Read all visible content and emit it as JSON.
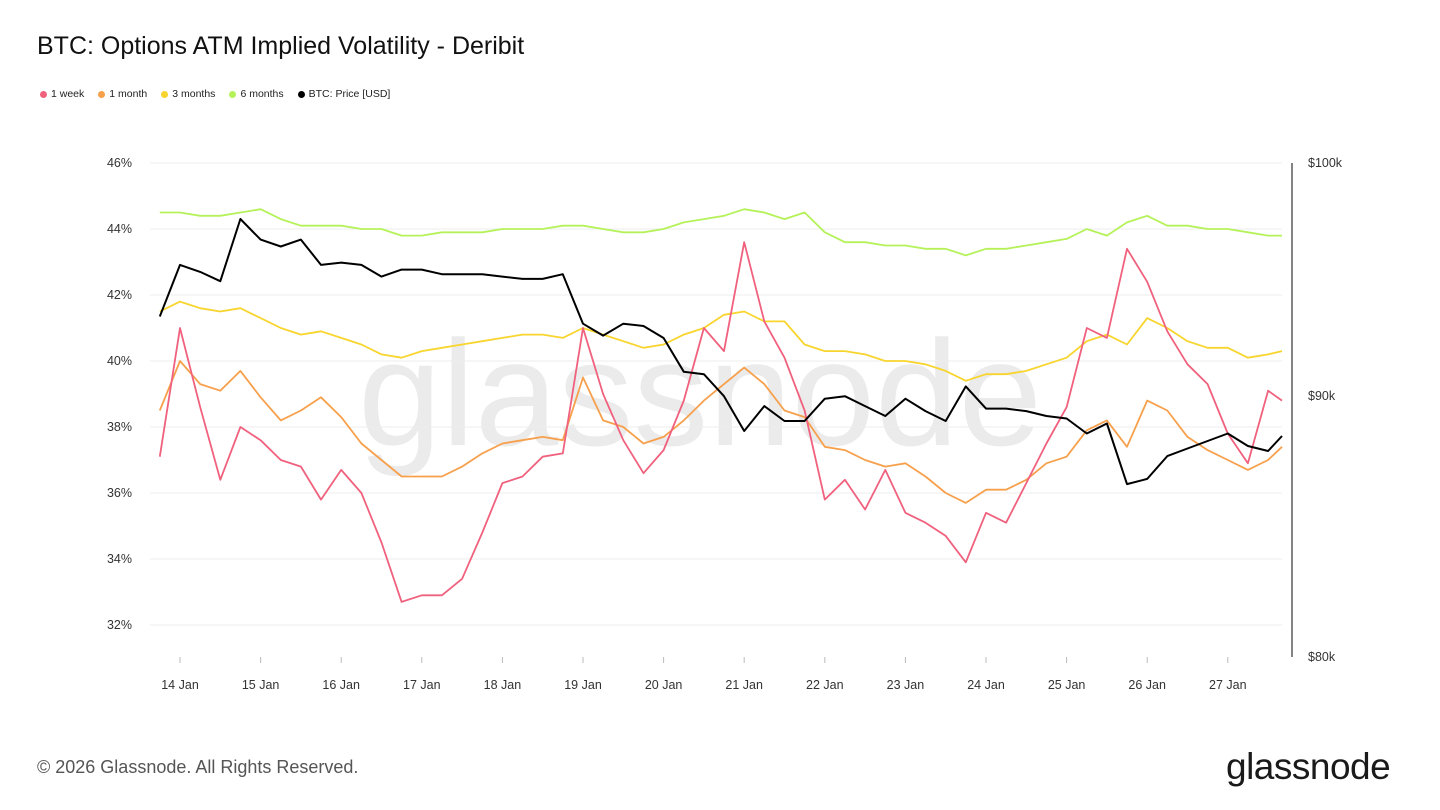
{
  "title": "BTC: Options ATM Implied Volatility - Deribit",
  "footer": "© 2026 Glassnode. All Rights Reserved.",
  "logo_text": "glassnode",
  "watermark_text": "glassnode",
  "chart_data": {
    "type": "line",
    "title": "BTC: Options ATM Implied Volatility - Deribit",
    "legend_position": "top-left",
    "grid": true,
    "x_ticks": [
      "14 Jan",
      "15 Jan",
      "16 Jan",
      "17 Jan",
      "18 Jan",
      "19 Jan",
      "20 Jan",
      "21 Jan",
      "22 Jan",
      "23 Jan",
      "24 Jan",
      "25 Jan",
      "26 Jan",
      "27 Jan"
    ],
    "y_left": {
      "ticks": [
        "32%",
        "34%",
        "36%",
        "38%",
        "40%",
        "42%",
        "44%",
        "46%"
      ],
      "range": [
        32,
        46
      ],
      "unit": "%"
    },
    "y_right": {
      "ticks": [
        "$80k",
        "$90k",
        "$100k"
      ],
      "range": [
        80000,
        100000
      ],
      "scale": "log",
      "unit": "USD"
    },
    "x": [
      "2026-01-13 18:00",
      "2026-01-14 00:00",
      "2026-01-14 06:00",
      "2026-01-14 12:00",
      "2026-01-14 18:00",
      "2026-01-15 00:00",
      "2026-01-15 06:00",
      "2026-01-15 12:00",
      "2026-01-15 18:00",
      "2026-01-16 00:00",
      "2026-01-16 06:00",
      "2026-01-16 12:00",
      "2026-01-16 18:00",
      "2026-01-17 00:00",
      "2026-01-17 06:00",
      "2026-01-17 12:00",
      "2026-01-17 18:00",
      "2026-01-18 00:00",
      "2026-01-18 06:00",
      "2026-01-18 12:00",
      "2026-01-18 18:00",
      "2026-01-19 00:00",
      "2026-01-19 06:00",
      "2026-01-19 12:00",
      "2026-01-19 18:00",
      "2026-01-20 00:00",
      "2026-01-20 06:00",
      "2026-01-20 12:00",
      "2026-01-20 18:00",
      "2026-01-21 00:00",
      "2026-01-21 06:00",
      "2026-01-21 12:00",
      "2026-01-21 18:00",
      "2026-01-22 00:00",
      "2026-01-22 06:00",
      "2026-01-22 12:00",
      "2026-01-22 18:00",
      "2026-01-23 00:00",
      "2026-01-23 06:00",
      "2026-01-23 12:00",
      "2026-01-23 18:00",
      "2026-01-24 00:00",
      "2026-01-24 06:00",
      "2026-01-24 12:00",
      "2026-01-24 18:00",
      "2026-01-25 00:00",
      "2026-01-25 06:00",
      "2026-01-25 12:00",
      "2026-01-25 18:00",
      "2026-01-26 00:00",
      "2026-01-26 06:00",
      "2026-01-26 12:00",
      "2026-01-26 18:00",
      "2026-01-27 00:00",
      "2026-01-27 06:00",
      "2026-01-27 12:00",
      "2026-01-27 18:00"
    ],
    "series": [
      {
        "name": "6 months",
        "color": "#b5f25a",
        "axis": "left",
        "values": [
          44.5,
          44.5,
          44.4,
          44.4,
          44.5,
          44.6,
          44.3,
          44.1,
          44.1,
          44.1,
          44.0,
          44.0,
          43.8,
          43.8,
          43.9,
          43.9,
          43.9,
          44.0,
          44.0,
          44.0,
          44.1,
          44.1,
          44.0,
          43.9,
          43.9,
          44.0,
          44.2,
          44.3,
          44.4,
          44.6,
          44.5,
          44.3,
          44.5,
          43.9,
          43.6,
          43.6,
          43.5,
          43.5,
          43.4,
          43.4,
          43.2,
          43.4,
          43.4,
          43.5,
          43.6,
          43.7,
          44.0,
          43.8,
          44.2,
          44.4,
          44.1,
          44.1,
          44.0,
          44.0,
          43.9,
          43.8,
          43.8
        ]
      },
      {
        "name": "3 months",
        "color": "#f8d52e",
        "axis": "left",
        "values": [
          41.5,
          41.8,
          41.6,
          41.5,
          41.6,
          41.3,
          41.0,
          40.8,
          40.9,
          40.7,
          40.5,
          40.2,
          40.1,
          40.3,
          40.4,
          40.5,
          40.6,
          40.7,
          40.8,
          40.8,
          40.7,
          41.0,
          40.8,
          40.6,
          40.4,
          40.5,
          40.8,
          41.0,
          41.4,
          41.5,
          41.2,
          41.2,
          40.5,
          40.3,
          40.3,
          40.2,
          40.0,
          40.0,
          39.9,
          39.7,
          39.4,
          39.6,
          39.6,
          39.7,
          39.9,
          40.1,
          40.6,
          40.8,
          40.5,
          41.3,
          41.0,
          40.6,
          40.4,
          40.4,
          40.1,
          40.2,
          40.3
        ]
      },
      {
        "name": "1 month",
        "color": "#f7a04c",
        "axis": "left",
        "values": [
          38.5,
          40.0,
          39.3,
          39.1,
          39.7,
          38.9,
          38.2,
          38.5,
          38.9,
          38.3,
          37.5,
          37.0,
          36.5,
          36.5,
          36.5,
          36.8,
          37.2,
          37.5,
          37.6,
          37.7,
          37.6,
          39.5,
          38.2,
          38.0,
          37.5,
          37.7,
          38.2,
          38.8,
          39.3,
          39.8,
          39.3,
          38.5,
          38.3,
          37.4,
          37.3,
          37.0,
          36.8,
          36.9,
          36.5,
          36.0,
          35.7,
          36.1,
          36.1,
          36.4,
          36.9,
          37.1,
          37.9,
          38.2,
          37.4,
          38.8,
          38.5,
          37.7,
          37.3,
          37.0,
          36.7,
          37.0,
          37.4
        ]
      },
      {
        "name": "1 week",
        "color": "#f0617e",
        "axis": "left",
        "values": [
          37.1,
          41.0,
          38.6,
          36.4,
          38.0,
          37.6,
          37.0,
          36.8,
          35.8,
          36.7,
          36.0,
          34.5,
          32.7,
          32.9,
          32.9,
          33.4,
          34.8,
          36.3,
          36.5,
          37.1,
          37.2,
          41.0,
          39.0,
          37.6,
          36.6,
          37.3,
          38.8,
          41.0,
          40.3,
          43.6,
          41.2,
          40.1,
          38.5,
          35.8,
          36.4,
          35.5,
          36.7,
          35.4,
          35.1,
          34.7,
          33.9,
          35.4,
          35.1,
          36.3,
          37.5,
          38.6,
          41.0,
          40.7,
          43.4,
          42.4,
          40.9,
          39.9,
          39.3,
          37.8,
          36.9,
          39.1,
          38.8
        ]
      },
      {
        "name": "BTC: Price [USD]",
        "color": "#000000",
        "axis": "right",
        "values": [
          93300,
          95500,
          95200,
          94800,
          97500,
          96600,
          96300,
          96600,
          95500,
          95600,
          95500,
          95000,
          95300,
          95300,
          95100,
          95100,
          95100,
          95000,
          94900,
          94900,
          95100,
          93000,
          92500,
          93000,
          92900,
          92400,
          91000,
          90900,
          90000,
          88600,
          89600,
          89000,
          89000,
          89900,
          90000,
          89600,
          89200,
          89900,
          89400,
          89000,
          90400,
          89500,
          89500,
          89400,
          89200,
          89100,
          88500,
          88900,
          86500,
          86700,
          87600,
          87900,
          88200,
          88500,
          88000,
          87800,
          88400
        ]
      }
    ]
  },
  "legend": [
    {
      "label": "1 week",
      "color": "#f0617e"
    },
    {
      "label": "1 month",
      "color": "#f7a04c"
    },
    {
      "label": "3 months",
      "color": "#f8d52e"
    },
    {
      "label": "6 months",
      "color": "#b5f25a"
    },
    {
      "label": "BTC: Price [USD]",
      "color": "#000000"
    }
  ]
}
